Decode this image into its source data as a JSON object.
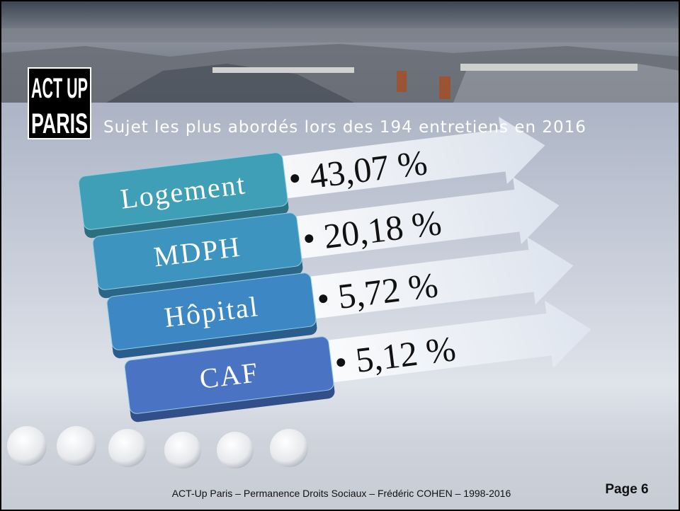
{
  "header": {
    "logo": [
      "ACT UP",
      "PARIS"
    ],
    "title": "Sujet les plus abordés lors des 194 entretiens en 2016"
  },
  "items": [
    {
      "label": "Logement",
      "value": "• 43,07 %"
    },
    {
      "label": "MDPH",
      "value": "• 20,18 %"
    },
    {
      "label": "Hôpital",
      "value": "• 5,72 %"
    },
    {
      "label": "CAF",
      "value": "• 5,12 %"
    }
  ],
  "footer": {
    "text": "ACT-Up Paris  –  Permanence Droits Sociaux  –  Frédéric COHEN – 1998-2016",
    "page": "Page 6"
  }
}
